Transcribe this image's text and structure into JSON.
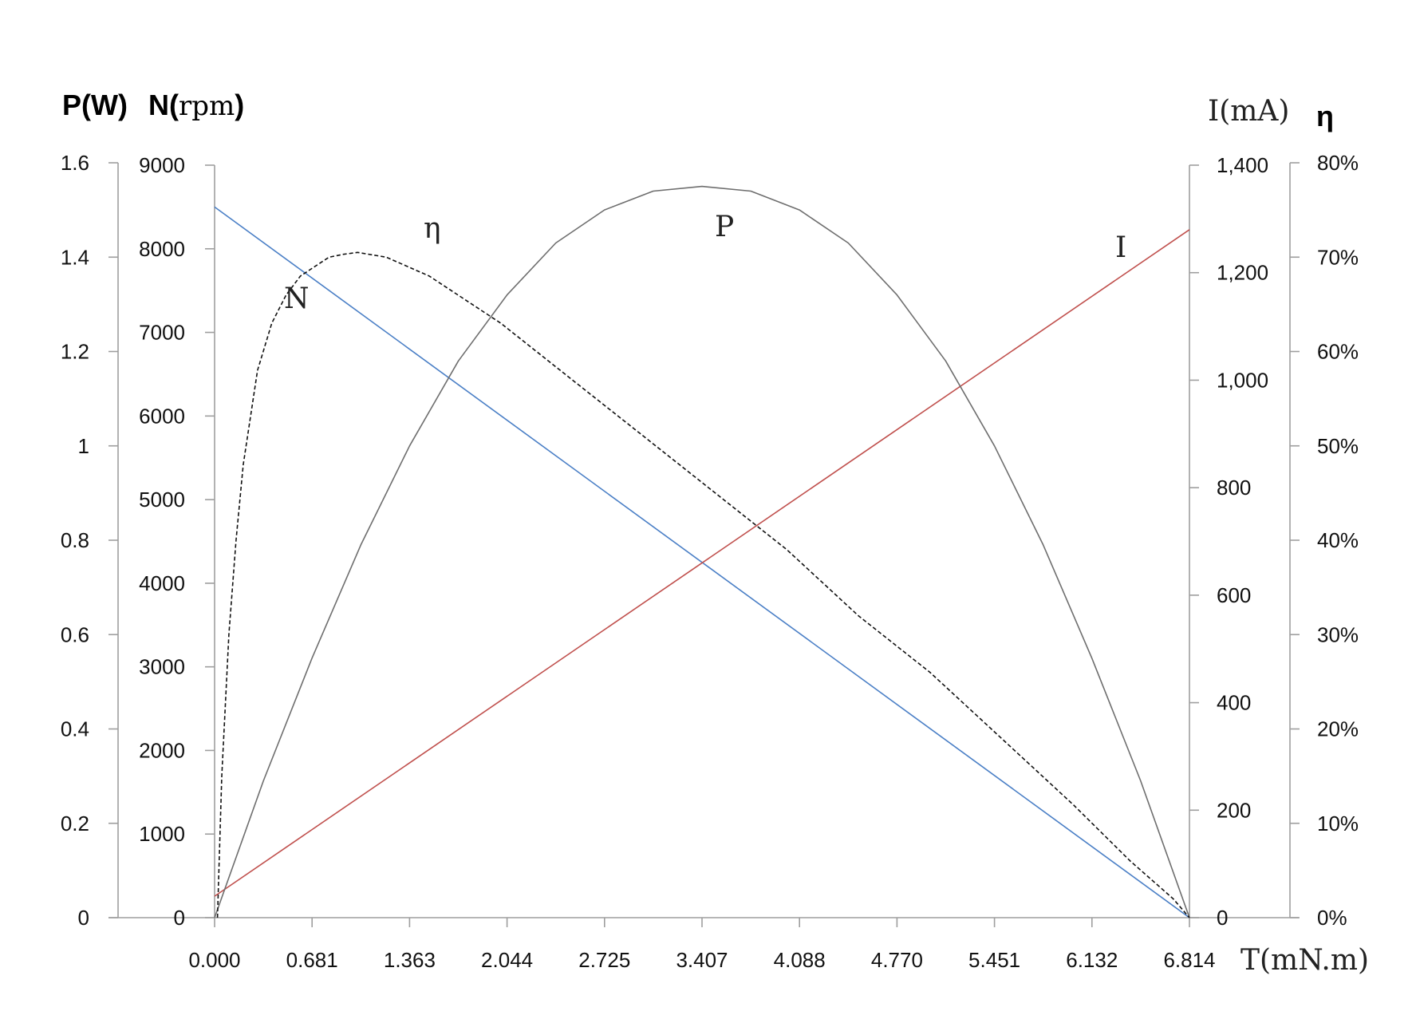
{
  "chart_data": {
    "type": "line",
    "title": "",
    "xlabel": "T(mN.m)",
    "x_ticks": [
      "0.000",
      "0.681",
      "1.363",
      "2.044",
      "2.725",
      "3.407",
      "4.088",
      "4.770",
      "5.451",
      "6.132",
      "6.814"
    ],
    "xlim": [
      0,
      6.814
    ],
    "axes": {
      "P": {
        "label_main": "P(W)",
        "ylim": [
          0,
          1.6
        ],
        "ticks": [
          "0",
          "0.2",
          "0.4",
          "0.6",
          "0.8",
          "1",
          "1.2",
          "1.4",
          "1.6"
        ]
      },
      "N": {
        "label_prefix": "N(",
        "label_unit": "rpm",
        "label_suffix": ")",
        "ylim": [
          0,
          9000
        ],
        "ticks": [
          "0",
          "1000",
          "2000",
          "3000",
          "4000",
          "5000",
          "6000",
          "7000",
          "8000",
          "9000"
        ]
      },
      "I": {
        "label": "I(mA)",
        "ylim": [
          0,
          1400
        ],
        "ticks": [
          "0",
          "200",
          "400",
          "600",
          "800",
          "1,000",
          "1,200",
          "1,400"
        ]
      },
      "eta": {
        "label": "η",
        "ylim": [
          0,
          0.8
        ],
        "ticks": [
          "0%",
          "10%",
          "20%",
          "30%",
          "40%",
          "50%",
          "60%",
          "70%",
          "80%"
        ]
      }
    },
    "series": [
      {
        "name": "N",
        "axis": "N",
        "color": "#4a7fc6",
        "style": "solid",
        "x": [
          0,
          6.814
        ],
        "y": [
          8500,
          0
        ]
      },
      {
        "name": "I",
        "axis": "I",
        "color": "#c0504d",
        "style": "solid",
        "x": [
          0,
          6.814
        ],
        "y": [
          40,
          1280
        ]
      },
      {
        "name": "P",
        "axis": "P",
        "color": "#6e6e6e",
        "style": "solid",
        "x": [
          0,
          0.341,
          0.681,
          1.022,
          1.363,
          1.704,
          2.044,
          2.385,
          2.725,
          3.066,
          3.407,
          3.748,
          4.088,
          4.429,
          4.77,
          5.11,
          5.451,
          5.792,
          6.132,
          6.473,
          6.814
        ],
        "y": [
          0,
          0.29,
          0.55,
          0.79,
          1.0,
          1.18,
          1.32,
          1.43,
          1.5,
          1.54,
          1.55,
          1.54,
          1.5,
          1.43,
          1.32,
          1.18,
          1.0,
          0.79,
          0.55,
          0.29,
          0
        ]
      },
      {
        "name": "η",
        "axis": "eta",
        "color": "#111111",
        "style": "dashed",
        "x": [
          0.02,
          0.05,
          0.1,
          0.15,
          0.2,
          0.3,
          0.4,
          0.5,
          0.6,
          0.7,
          0.8,
          0.9,
          1.0,
          1.2,
          1.5,
          2.0,
          2.5,
          3.0,
          3.5,
          4.0,
          4.5,
          5.0,
          5.5,
          6.0,
          6.4,
          6.7,
          6.814
        ],
        "y": [
          0.0,
          0.15,
          0.3,
          0.4,
          0.48,
          0.58,
          0.63,
          0.66,
          0.68,
          0.69,
          0.7,
          0.703,
          0.705,
          0.7,
          0.68,
          0.63,
          0.57,
          0.51,
          0.45,
          0.39,
          0.32,
          0.26,
          0.19,
          0.12,
          0.06,
          0.02,
          0.0
        ]
      }
    ],
    "curve_labels": {
      "N": "N",
      "eta": "η",
      "P": "P",
      "I": "I"
    },
    "grid": false,
    "legend": "none"
  }
}
